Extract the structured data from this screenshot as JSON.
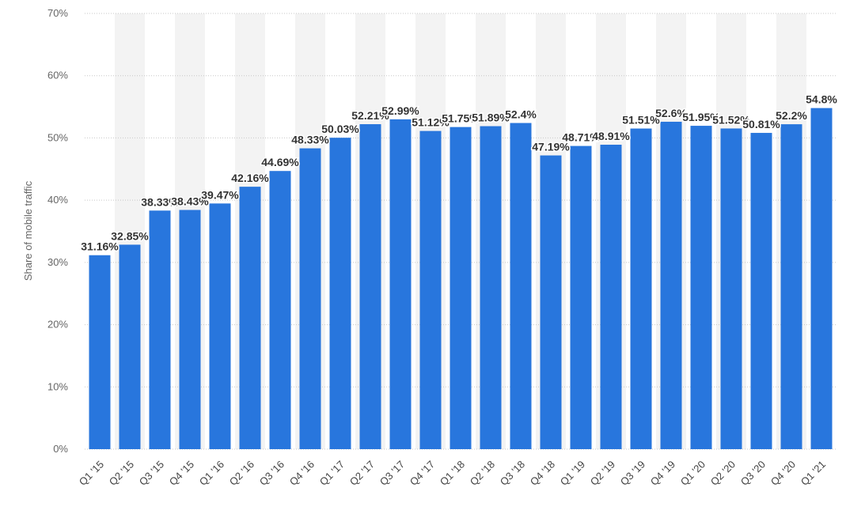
{
  "chart_data": {
    "type": "bar",
    "title": "",
    "xlabel": "",
    "ylabel": "Share of mobile traffic",
    "ylim": [
      0,
      70
    ],
    "yticks": [
      0,
      10,
      20,
      30,
      40,
      50,
      60,
      70
    ],
    "ytick_labels": [
      "0%",
      "10%",
      "20%",
      "30%",
      "40%",
      "50%",
      "60%",
      "70%"
    ],
    "grid": true,
    "bar_color": "#2876dd",
    "band_color": "#f3f3f3",
    "categories": [
      "Q1 '15",
      "Q2 '15",
      "Q3 '15",
      "Q4 '15",
      "Q1 '16",
      "Q2 '16",
      "Q3 '16",
      "Q4 '16",
      "Q1 '17",
      "Q2 '17",
      "Q3 '17",
      "Q4 '17",
      "Q1 '18",
      "Q2 '18",
      "Q3 '18",
      "Q4 '18",
      "Q1 '19",
      "Q2 '19",
      "Q3 '19",
      "Q4 '19",
      "Q1 '20",
      "Q2 '20",
      "Q3 '20",
      "Q4 '20",
      "Q1 '21"
    ],
    "values": [
      31.16,
      32.85,
      38.33,
      38.43,
      39.47,
      42.16,
      44.69,
      48.33,
      50.03,
      52.21,
      52.99,
      51.12,
      51.75,
      51.89,
      52.4,
      47.19,
      48.71,
      48.91,
      51.51,
      52.6,
      51.95,
      51.52,
      50.81,
      52.2,
      54.8
    ],
    "data_labels": [
      "31.16%",
      "32.85%",
      "38.33%",
      "38.43%",
      "39.47%",
      "42.16%",
      "44.69%",
      "48.33%",
      "50.03%",
      "52.21%",
      "52.99%",
      "51.12%",
      "51.75%",
      "51.89%",
      "52.4%",
      "47.19%",
      "48.71%",
      "48.91%",
      "51.51%",
      "52.6%",
      "51.95%",
      "51.52%",
      "50.81%",
      "52.2%",
      "54.8%"
    ]
  }
}
